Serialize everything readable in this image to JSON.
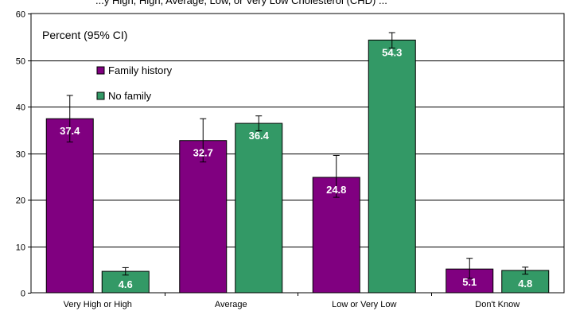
{
  "header_fragment": "...y High, High, Average, Low, or Very Low Cholesterol (CHD) ...",
  "chart_data": {
    "type": "bar",
    "title": "",
    "annotation": "Percent (95% CI)",
    "xlabel": "",
    "ylabel": "",
    "categories": [
      "Very High or High",
      "Average",
      "Low or Very Low",
      "Don't Know"
    ],
    "series": [
      {
        "name": "Family history",
        "color": "#800080",
        "values": [
          37.4,
          32.7,
          24.8,
          5.1
        ],
        "ci_lower": [
          32.4,
          28.1,
          20.5,
          3.1
        ],
        "ci_upper": [
          42.4,
          37.4,
          29.5,
          7.4
        ]
      },
      {
        "name": "No family",
        "color": "#339966",
        "values": [
          4.6,
          36.4,
          54.3,
          4.8
        ],
        "ci_lower": [
          3.8,
          34.8,
          52.6,
          4.0
        ],
        "ci_upper": [
          5.4,
          38.0,
          55.9,
          5.5
        ]
      }
    ],
    "ylim": [
      0,
      60
    ],
    "yticks": [
      0,
      10,
      20,
      30,
      40,
      50,
      60
    ],
    "grid": "horizontal",
    "legend_position": "upper-left",
    "value_label_color": "#ffffff"
  }
}
